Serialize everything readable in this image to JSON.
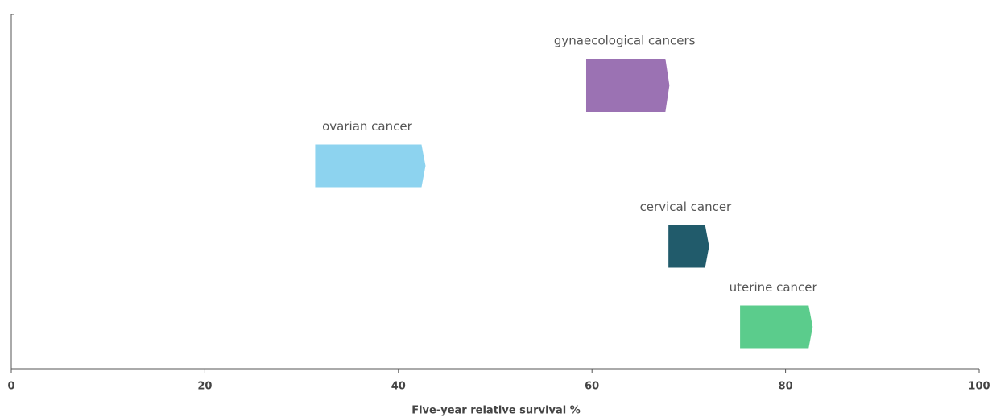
{
  "chart_data": {
    "type": "floating-bar",
    "xlabel": "Five-year relative survival %",
    "categories": [
      "gynaecological cancers",
      "ovarian cancer",
      "cervical cancer",
      "uterine cancer"
    ],
    "start": [
      59.4,
      31.4,
      67.9,
      75.3
    ],
    "end": [
      68.0,
      42.8,
      72.1,
      82.8
    ],
    "colors": [
      "#9b72b3",
      "#8dd3ef",
      "#215b6b",
      "#5bcc8c"
    ],
    "xlim": [
      0,
      100
    ],
    "xticks": [
      0,
      20,
      40,
      60,
      80,
      100
    ]
  }
}
